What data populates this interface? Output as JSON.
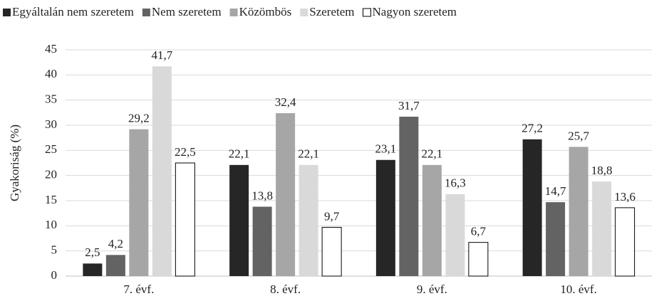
{
  "chart_data": {
    "type": "bar",
    "y_label": "Gyakoriság (%)",
    "categories": [
      "7. évf.",
      "8. évf.",
      "9. évf.",
      "10. évf."
    ],
    "series": [
      {
        "name": "Egyáltalán nem szeretem",
        "color": "#262626",
        "values": [
          2.5,
          22.1,
          23.1,
          27.2
        ],
        "value_labels": [
          "2,5",
          "22,1",
          "23,1",
          "27,2"
        ]
      },
      {
        "name": "Nem szeretem",
        "color": "#636363",
        "values": [
          4.2,
          13.8,
          31.7,
          14.7
        ],
        "value_labels": [
          "4,2",
          "13,8",
          "31,7",
          "14,7"
        ]
      },
      {
        "name": "Közömbös",
        "color": "#a6a6a6",
        "values": [
          29.2,
          32.4,
          22.1,
          25.7
        ],
        "value_labels": [
          "29,2",
          "32,4",
          "22,1",
          "25,7"
        ]
      },
      {
        "name": "Szeretem",
        "color": "#d9d9d9",
        "values": [
          41.7,
          22.1,
          16.3,
          18.8
        ],
        "value_labels": [
          "41,7",
          "22,1",
          "16,3",
          "18,8"
        ]
      },
      {
        "name": "Nagyon szeretem",
        "color": "#ffffff",
        "values": [
          22.5,
          9.7,
          6.7,
          13.6
        ],
        "value_labels": [
          "22,5",
          "9,7",
          "6,7",
          "13,6"
        ]
      }
    ],
    "ylim": [
      0,
      45
    ],
    "yticks": [
      0,
      5,
      10,
      15,
      20,
      25,
      30,
      35,
      40,
      45
    ],
    "grid": true,
    "legend": "top"
  }
}
